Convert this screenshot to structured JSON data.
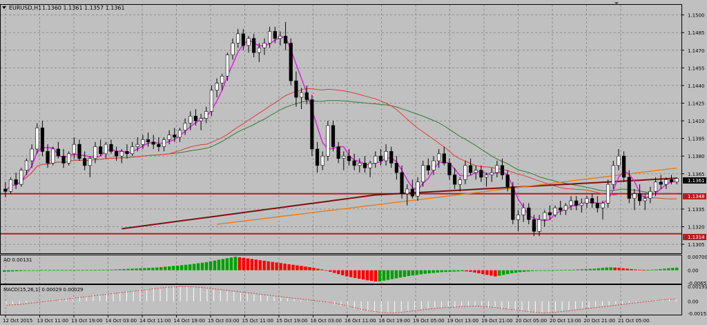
{
  "window": {
    "symbol_label": "EURUSD,H1",
    "ohlc_label": "1.1360 1.1361 1.1357 1.1361"
  },
  "colors": {
    "background": "#c0c0c0",
    "grid": "#8c8c8c",
    "bull_body": "#ffffff",
    "bear_body": "#000000",
    "ma_fast": "#e020e0",
    "ma_green": "#2e7d32",
    "ma_red": "#e53935",
    "ma_orange": "#e67e22",
    "ma_darkred": "#7b1010",
    "hline": "#b71c1c",
    "ao_up": "#00a000",
    "ao_down": "#ff0000",
    "macd_hist": "#ffffff",
    "macd_signal": "#d04040"
  },
  "price_axis": {
    "ticks": [
      "1.1500",
      "1.1485",
      "1.1470",
      "1.1455",
      "1.1440",
      "1.1425",
      "1.1410",
      "1.1395",
      "1.1380",
      "1.1365",
      "1.1335",
      "1.1320",
      "1.1305"
    ],
    "current_price": "1.1361",
    "level_1": "1.1348",
    "level_2": "1.1314"
  },
  "ao_panel": {
    "label": "AO 0.00131",
    "ticks": [
      "0.00700",
      "0.00",
      "-0.00655"
    ]
  },
  "macd_panel": {
    "label": "MACD(15,26,1) 0.00029 0.00029",
    "ticks": [
      "0.00191",
      "0.00",
      "-0.00152"
    ]
  },
  "time_axis": {
    "labels": [
      "12 Oct 2015",
      "13 Oct 11:00",
      "13 Oct 19:00",
      "14 Oct 03:00",
      "14 Oct 11:00",
      "14 Oct 19:00",
      "15 Oct 03:00",
      "15 Oct 11:00",
      "15 Oct 19:00",
      "16 Oct 03:00",
      "16 Oct 11:00",
      "16 Oct 19:00",
      "19 Oct 05:00",
      "19 Oct 13:00",
      "19 Oct 21:00",
      "20 Oct 05:00",
      "20 Oct 13:00",
      "20 Oct 21:00",
      "21 Oct 05:00"
    ]
  },
  "chart_data": {
    "type": "candlestick",
    "y_range": [
      1.1298,
      1.1508
    ],
    "candles": [
      [
        1.1352,
        1.1358,
        1.1345,
        1.135
      ],
      [
        1.135,
        1.1362,
        1.1348,
        1.136
      ],
      [
        1.136,
        1.1366,
        1.1352,
        1.1356
      ],
      [
        1.1356,
        1.137,
        1.1354,
        1.1368
      ],
      [
        1.1368,
        1.1378,
        1.1364,
        1.1376
      ],
      [
        1.1376,
        1.139,
        1.137,
        1.1386
      ],
      [
        1.1386,
        1.1408,
        1.1382,
        1.1404
      ],
      [
        1.1404,
        1.141,
        1.138,
        1.1384
      ],
      [
        1.1384,
        1.139,
        1.137,
        1.1374
      ],
      [
        1.1374,
        1.1388,
        1.1372,
        1.1386
      ],
      [
        1.1386,
        1.1392,
        1.1378,
        1.138
      ],
      [
        1.138,
        1.1386,
        1.137,
        1.1374
      ],
      [
        1.1374,
        1.1384,
        1.1372,
        1.1382
      ],
      [
        1.1382,
        1.1396,
        1.1378,
        1.139
      ],
      [
        1.139,
        1.1394,
        1.1376,
        1.1378
      ],
      [
        1.1378,
        1.1384,
        1.1368,
        1.1372
      ],
      [
        1.1372,
        1.138,
        1.1362,
        1.1378
      ],
      [
        1.1378,
        1.1392,
        1.1374,
        1.1388
      ],
      [
        1.1388,
        1.1394,
        1.138,
        1.1382
      ],
      [
        1.1382,
        1.1392,
        1.1378,
        1.139
      ],
      [
        1.139,
        1.1394,
        1.1382,
        1.1384
      ],
      [
        1.1384,
        1.1388,
        1.1376,
        1.138
      ],
      [
        1.138,
        1.1386,
        1.1374,
        1.1384
      ],
      [
        1.1384,
        1.139,
        1.1378,
        1.1382
      ],
      [
        1.1382,
        1.1392,
        1.138,
        1.1388
      ],
      [
        1.1388,
        1.1396,
        1.1384,
        1.139
      ],
      [
        1.139,
        1.1398,
        1.1386,
        1.1394
      ],
      [
        1.1394,
        1.14,
        1.1388,
        1.1392
      ],
      [
        1.1392,
        1.1398,
        1.1386,
        1.139
      ],
      [
        1.139,
        1.1396,
        1.1384,
        1.1388
      ],
      [
        1.1388,
        1.1396,
        1.1384,
        1.1394
      ],
      [
        1.1394,
        1.1402,
        1.139,
        1.1398
      ],
      [
        1.1398,
        1.1404,
        1.1392,
        1.1396
      ],
      [
        1.1396,
        1.1404,
        1.1392,
        1.1402
      ],
      [
        1.1402,
        1.1412,
        1.1398,
        1.1408
      ],
      [
        1.1408,
        1.1418,
        1.1402,
        1.1414
      ],
      [
        1.1414,
        1.142,
        1.1406,
        1.141
      ],
      [
        1.141,
        1.1416,
        1.1402,
        1.1412
      ],
      [
        1.1412,
        1.1422,
        1.1408,
        1.1418
      ],
      [
        1.1418,
        1.144,
        1.1414,
        1.1436
      ],
      [
        1.1436,
        1.1446,
        1.143,
        1.1442
      ],
      [
        1.1442,
        1.145,
        1.1436,
        1.1448
      ],
      [
        1.1448,
        1.1468,
        1.1444,
        1.1466
      ],
      [
        1.1466,
        1.148,
        1.1462,
        1.1476
      ],
      [
        1.1476,
        1.1488,
        1.1472,
        1.1484
      ],
      [
        1.1484,
        1.1488,
        1.147,
        1.1474
      ],
      [
        1.1474,
        1.1482,
        1.1468,
        1.148
      ],
      [
        1.148,
        1.1484,
        1.1464,
        1.1468
      ],
      [
        1.1468,
        1.1476,
        1.146,
        1.1472
      ],
      [
        1.1472,
        1.148,
        1.1466,
        1.1476
      ],
      [
        1.1476,
        1.149,
        1.1472,
        1.1486
      ],
      [
        1.1486,
        1.149,
        1.1476,
        1.148
      ],
      [
        1.148,
        1.1486,
        1.1474,
        1.1482
      ],
      [
        1.1482,
        1.1494,
        1.147,
        1.1476
      ],
      [
        1.1476,
        1.148,
        1.144,
        1.1444
      ],
      [
        1.1444,
        1.1452,
        1.1422,
        1.143
      ],
      [
        1.143,
        1.1438,
        1.142,
        1.1434
      ],
      [
        1.1434,
        1.144,
        1.1424,
        1.1428
      ],
      [
        1.1428,
        1.1432,
        1.138,
        1.1386
      ],
      [
        1.1386,
        1.1392,
        1.1366,
        1.1372
      ],
      [
        1.1372,
        1.1384,
        1.1368,
        1.138
      ],
      [
        1.138,
        1.141,
        1.1376,
        1.1406
      ],
      [
        1.1406,
        1.141,
        1.1384,
        1.1388
      ],
      [
        1.1388,
        1.1392,
        1.1374,
        1.1378
      ],
      [
        1.1378,
        1.1384,
        1.1368,
        1.138
      ],
      [
        1.138,
        1.1386,
        1.1372,
        1.1376
      ],
      [
        1.1376,
        1.1382,
        1.1368,
        1.1372
      ],
      [
        1.1372,
        1.1378,
        1.1366,
        1.1374
      ],
      [
        1.1374,
        1.138,
        1.1366,
        1.137
      ],
      [
        1.137,
        1.1376,
        1.1362,
        1.1374
      ],
      [
        1.1374,
        1.1384,
        1.137,
        1.138
      ],
      [
        1.138,
        1.1386,
        1.1372,
        1.1376
      ],
      [
        1.1376,
        1.139,
        1.1372,
        1.1384
      ],
      [
        1.1384,
        1.1388,
        1.137,
        1.1374
      ],
      [
        1.1374,
        1.138,
        1.136,
        1.1366
      ],
      [
        1.1366,
        1.1372,
        1.1344,
        1.1348
      ],
      [
        1.1348,
        1.1356,
        1.1338,
        1.1352
      ],
      [
        1.1352,
        1.136,
        1.1344,
        1.1346
      ],
      [
        1.1346,
        1.1362,
        1.1342,
        1.1358
      ],
      [
        1.1358,
        1.1376,
        1.1354,
        1.1372
      ],
      [
        1.1372,
        1.1378,
        1.1364,
        1.1368
      ],
      [
        1.1368,
        1.138,
        1.1364,
        1.1376
      ],
      [
        1.1376,
        1.1386,
        1.137,
        1.1382
      ],
      [
        1.1382,
        1.1388,
        1.1372,
        1.1374
      ],
      [
        1.1374,
        1.1378,
        1.136,
        1.1364
      ],
      [
        1.1364,
        1.137,
        1.1352,
        1.1356
      ],
      [
        1.1356,
        1.1362,
        1.135,
        1.136
      ],
      [
        1.136,
        1.1376,
        1.1356,
        1.1372
      ],
      [
        1.1372,
        1.1378,
        1.1364,
        1.1366
      ],
      [
        1.1366,
        1.1372,
        1.136,
        1.1368
      ],
      [
        1.1368,
        1.1372,
        1.1358,
        1.1362
      ],
      [
        1.1362,
        1.1366,
        1.1354,
        1.1364
      ],
      [
        1.1364,
        1.137,
        1.1358,
        1.1366
      ],
      [
        1.1366,
        1.1376,
        1.1362,
        1.1372
      ],
      [
        1.1372,
        1.1378,
        1.136,
        1.1364
      ],
      [
        1.1364,
        1.1368,
        1.135,
        1.1354
      ],
      [
        1.1354,
        1.1358,
        1.1322,
        1.1326
      ],
      [
        1.1326,
        1.1334,
        1.1316,
        1.133
      ],
      [
        1.133,
        1.134,
        1.1324,
        1.1336
      ],
      [
        1.1336,
        1.134,
        1.1322,
        1.1326
      ],
      [
        1.1326,
        1.133,
        1.1312,
        1.1316
      ],
      [
        1.1316,
        1.133,
        1.1312,
        1.1326
      ],
      [
        1.1326,
        1.1334,
        1.132,
        1.1332
      ],
      [
        1.1332,
        1.1338,
        1.1326,
        1.133
      ],
      [
        1.133,
        1.1338,
        1.1328,
        1.1336
      ],
      [
        1.1336,
        1.1342,
        1.133,
        1.1334
      ],
      [
        1.1334,
        1.134,
        1.133,
        1.1338
      ],
      [
        1.1338,
        1.1346,
        1.1334,
        1.1342
      ],
      [
        1.1342,
        1.1346,
        1.1334,
        1.1338
      ],
      [
        1.1338,
        1.1344,
        1.1332,
        1.134
      ],
      [
        1.134,
        1.1346,
        1.1336,
        1.1344
      ],
      [
        1.1344,
        1.1348,
        1.1336,
        1.134
      ],
      [
        1.134,
        1.1346,
        1.1332,
        1.1336
      ],
      [
        1.1336,
        1.1342,
        1.1326,
        1.134
      ],
      [
        1.134,
        1.136,
        1.1336,
        1.1356
      ],
      [
        1.1356,
        1.1376,
        1.1352,
        1.1372
      ],
      [
        1.1372,
        1.1386,
        1.1368,
        1.138
      ],
      [
        1.138,
        1.1384,
        1.1358,
        1.1362
      ],
      [
        1.1362,
        1.1368,
        1.134,
        1.1344
      ],
      [
        1.1344,
        1.1352,
        1.1334,
        1.1348
      ],
      [
        1.1348,
        1.1356,
        1.1338,
        1.1342
      ],
      [
        1.1342,
        1.1348,
        1.1334,
        1.1344
      ],
      [
        1.1344,
        1.1354,
        1.134,
        1.135
      ],
      [
        1.135,
        1.1362,
        1.1346,
        1.1358
      ],
      [
        1.1358,
        1.1364,
        1.1352,
        1.1356
      ],
      [
        1.1356,
        1.1362,
        1.1352,
        1.136
      ],
      [
        1.136,
        1.1364,
        1.1356,
        1.1358
      ],
      [
        1.1358,
        1.1362,
        1.1356,
        1.1361
      ]
    ],
    "horizontal_levels": [
      1.1348,
      1.1314
    ],
    "ao_values": [
      -0.0008,
      -0.0007,
      -0.0006,
      -0.0005,
      -0.0004,
      -0.0003,
      -0.0002,
      -0.0001,
      0,
      0.0001,
      0.0001,
      0.0001,
      0.0001,
      0.0001,
      0.0001,
      0.0001,
      0.0001,
      0.0001,
      0.0001,
      0.0001,
      0.0001,
      0.0001,
      0.0001,
      0.0002,
      0.0002,
      0.0003,
      0.0003,
      0.0004,
      0.0005,
      0.0006,
      0.0007,
      0.0008,
      0.0009,
      0.001,
      0.0011,
      0.0012,
      0.0013,
      0.0014,
      0.0016,
      0.0018,
      0.002,
      0.0022,
      0.0024,
      0.0026,
      0.0028,
      0.003,
      0.0033,
      0.0036,
      0.0039,
      0.0042,
      0.0046,
      0.005,
      0.0054,
      0.0058,
      0.0062,
      0.0066,
      0.007,
      0.0067,
      0.0064,
      0.0061,
      0.0058,
      0.0055,
      0.0052,
      0.0049,
      0.0046,
      0.0043,
      0.004,
      0.0037,
      0.0034,
      0.0031,
      0.0028,
      0.0025,
      0.0022,
      0.0019,
      0.0016,
      0.0012,
      0.0008,
      0.0004,
      -0.0002,
      -0.0008,
      -0.0014,
      -0.002,
      -0.0026,
      -0.0032,
      -0.0036,
      -0.004,
      -0.0044,
      -0.0048,
      -0.0052,
      -0.0055,
      -0.0058,
      -0.0058,
      -0.0054,
      -0.005,
      -0.0046,
      -0.0042,
      -0.0038,
      -0.0034,
      -0.003,
      -0.0027,
      -0.0024,
      -0.0021,
      -0.0018,
      -0.0016,
      -0.0014,
      -0.0012,
      -0.001,
      -0.0009,
      -0.0008,
      -0.0007,
      -0.0006,
      -0.0005,
      -0.0006,
      -0.0008,
      -0.0012,
      -0.0016,
      -0.002,
      -0.0024,
      -0.0028,
      -0.0032,
      -0.0028,
      -0.0024,
      -0.002,
      -0.0016,
      -0.0013,
      -0.001,
      -0.0008,
      -0.0006,
      -0.0004,
      -0.0003,
      -0.0002,
      -0.0002,
      -0.0001,
      0,
      0.0001,
      0.0001,
      0.0002,
      0.0002,
      0.0003,
      0.0004,
      0.0005,
      0.0006,
      0.0007,
      0.0008,
      0.001,
      0.0012,
      0.0014,
      0.0015,
      0.0014,
      0.0012,
      0.001,
      0.0008,
      0.0006,
      0.0004,
      0.0003,
      0.0002,
      0.0002,
      0.0003,
      0.0004,
      0.0006,
      0.0008,
      0.001,
      0.0012,
      0.0013
    ],
    "macd_values": [
      -0.0005,
      -0.0004,
      -0.0003,
      -0.0002,
      -0.0001,
      0,
      0.0001,
      0.0002,
      0.0003,
      0.0004,
      0.0005,
      0.0006,
      0.0007,
      0.0008,
      0.0009,
      0.001,
      0.0011,
      0.0012,
      0.0013,
      0.0014,
      0.0015,
      0.0016,
      0.0017,
      0.0018,
      0.00185,
      0.0019,
      0.0019,
      0.00185,
      0.0018,
      0.0017,
      0.0016,
      0.0015,
      0.0014,
      0.0013,
      0.0012,
      0.0011,
      0.001,
      0.0009,
      0.0008,
      0.0007,
      0.0006,
      0.0005,
      0.0004,
      0.0003,
      0.0002,
      0.0001,
      0,
      -0.0001,
      -0.0002,
      -0.0004,
      -0.0006,
      -0.0008,
      -0.001,
      -0.0012,
      -0.0013,
      -0.0014,
      -0.0015,
      -0.0015,
      -0.0014,
      -0.0013,
      -0.0012,
      -0.0011,
      -0.001,
      -0.0009,
      -0.0008,
      -0.0008,
      -0.0007,
      -0.0007,
      -0.0006,
      -0.0006,
      -0.0006,
      -0.0007,
      -0.0008,
      -0.0009,
      -0.001,
      -0.0011,
      -0.0012,
      -0.0013,
      -0.0014,
      -0.0015,
      -0.0015,
      -0.0014,
      -0.0013,
      -0.0012,
      -0.0011,
      -0.001,
      -0.0009,
      -0.0008,
      -0.0007,
      -0.0006,
      -0.0005,
      -0.0004,
      -0.0003,
      -0.0002,
      -0.0001,
      0,
      0.0001,
      0.0002,
      0.0003,
      0.0003,
      0.0003
    ],
    "time_labels_count": 19
  }
}
